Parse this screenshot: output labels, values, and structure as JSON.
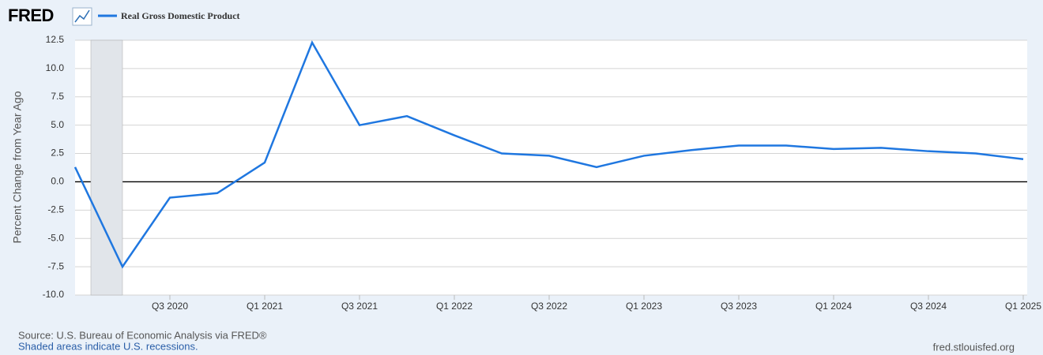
{
  "logo": "FRED",
  "chart_data": {
    "type": "line",
    "ylabel": "Percent Change from Year Ago",
    "categories": [
      null,
      null,
      "Q3 2020",
      null,
      "Q1 2021",
      null,
      "Q3 2021",
      null,
      "Q1 2022",
      null,
      "Q3 2022",
      null,
      "Q1 2023",
      null,
      "Q3 2023",
      null,
      "Q1 2024",
      null,
      "Q3 2024",
      null,
      "Q1 2025"
    ],
    "series": [
      {
        "name": "Real Gross Domestic Product",
        "color": "#1f77e0",
        "values": [
          1.3,
          -7.5,
          -1.4,
          -1.0,
          1.7,
          12.3,
          5.0,
          5.8,
          4.1,
          2.5,
          2.3,
          1.3,
          2.3,
          2.8,
          3.2,
          3.2,
          2.9,
          3.0,
          2.7,
          2.5,
          2.0
        ]
      }
    ],
    "ylim": [
      -10,
      12.5
    ],
    "yticks": [
      {
        "value": -10,
        "label": "-10.0"
      },
      -7.5,
      {
        "value": -5,
        "label": "-5.0"
      },
      -2.5,
      {
        "value": 0,
        "label": "0.0"
      },
      2.5,
      {
        "value": 5,
        "label": "5.0"
      },
      7.5,
      {
        "value": 10,
        "label": "10.0"
      },
      12.5
    ],
    "grid": true,
    "source": "Source: U.S. Bureau of Economic Analysis via FRED®",
    "note": "Shaded areas indicate U.S. recessions.",
    "site": "fred.stlouisfed.org"
  }
}
